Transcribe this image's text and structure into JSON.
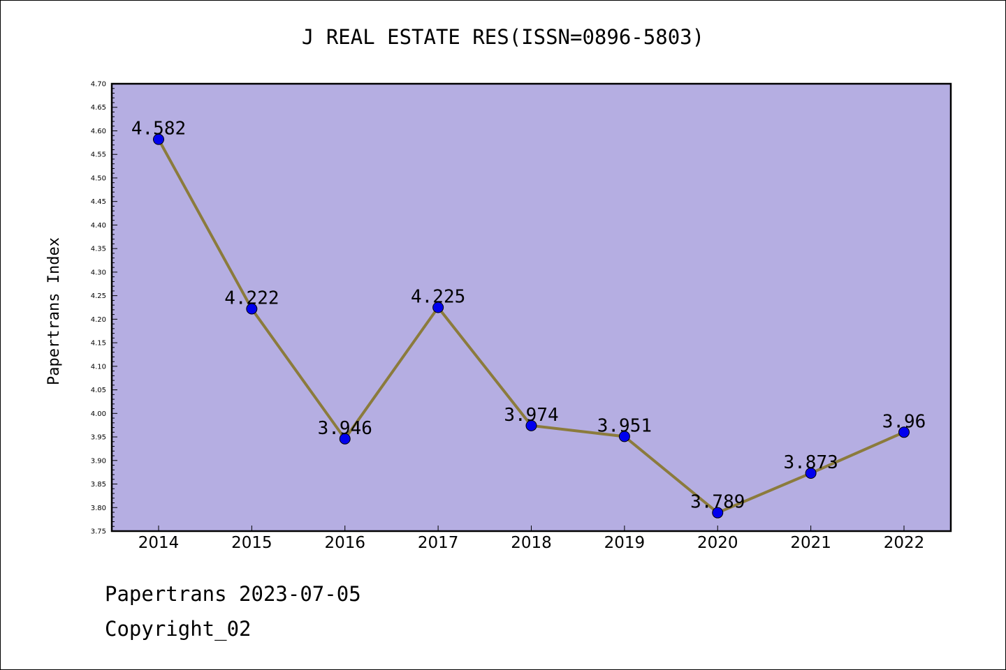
{
  "chart_data": {
    "type": "line",
    "title": "J REAL ESTATE RES(ISSN=0896-5803)",
    "xlabel": "",
    "ylabel": "Papertrans Index",
    "categories": [
      "2014",
      "2015",
      "2016",
      "2017",
      "2018",
      "2019",
      "2020",
      "2021",
      "2022"
    ],
    "series": [
      {
        "values": [
          4.582,
          4.222,
          3.946,
          4.225,
          3.974,
          3.951,
          3.789,
          3.873,
          3.96
        ]
      }
    ],
    "data_labels": [
      "4.582",
      "4.222",
      "3.946",
      "4.225",
      "3.974",
      "3.951",
      "3.789",
      "3.873",
      "3.96"
    ],
    "ylim": [
      3.75,
      4.7
    ],
    "yticks": [
      "3.75",
      "3.80",
      "3.85",
      "3.90",
      "3.95",
      "4.00",
      "4.05",
      "4.10",
      "4.15",
      "4.20",
      "4.25",
      "4.30",
      "4.35",
      "4.40",
      "4.45",
      "4.50",
      "4.55",
      "4.60",
      "4.65",
      "4.70"
    ],
    "grid": false,
    "colors": {
      "plot_background": "#b5aee2",
      "line": "#8b7b3c",
      "marker": "#0000ee"
    }
  },
  "footer": {
    "date": "Papertrans 2023-07-05",
    "copyright": "Copyright_02"
  }
}
